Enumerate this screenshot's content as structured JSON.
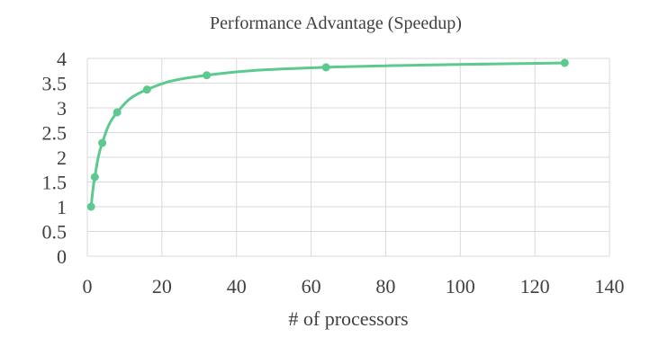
{
  "chart_data": {
    "type": "scatter",
    "title": "Performance Advantage (Speedup)",
    "xlabel": "# of processors",
    "ylabel": "",
    "xlim": [
      0,
      140
    ],
    "ylim": [
      0,
      4
    ],
    "xticks": [
      0,
      20,
      40,
      60,
      80,
      100,
      120,
      140
    ],
    "yticks": [
      0,
      0.5,
      1,
      1.5,
      2,
      2.5,
      3,
      3.5,
      4
    ],
    "grid": true,
    "legend": "none",
    "series": [
      {
        "x": [
          1,
          2,
          4,
          8,
          16,
          32,
          64,
          128
        ],
        "y": [
          1.0,
          1.6,
          2.29,
          2.91,
          3.37,
          3.66,
          3.82,
          3.91
        ]
      }
    ],
    "line_color": "#5cc98f",
    "marker_color": "#5cc98f",
    "smoothed_line": true,
    "gridline_color": "#d9d9d9",
    "text_color": "#404040"
  }
}
